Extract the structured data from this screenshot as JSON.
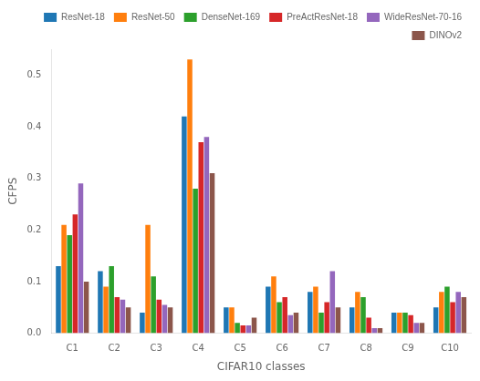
{
  "chart_data": {
    "type": "bar",
    "xlabel": "CIFAR10 classes",
    "ylabel": "CFPS",
    "categories": [
      "C1",
      "C2",
      "C3",
      "C4",
      "C5",
      "C6",
      "C7",
      "C8",
      "C9",
      "C10"
    ],
    "series": [
      {
        "name": "ResNet-18",
        "color": "#1f77b4",
        "values": [
          0.13,
          0.12,
          0.04,
          0.42,
          0.05,
          0.09,
          0.08,
          0.05,
          0.04,
          0.05
        ]
      },
      {
        "name": "ResNet-50",
        "color": "#ff7f0e",
        "values": [
          0.21,
          0.09,
          0.21,
          0.53,
          0.05,
          0.11,
          0.09,
          0.08,
          0.04,
          0.08
        ]
      },
      {
        "name": "DenseNet-169",
        "color": "#2ca02c",
        "values": [
          0.19,
          0.13,
          0.11,
          0.28,
          0.02,
          0.06,
          0.04,
          0.07,
          0.04,
          0.09
        ]
      },
      {
        "name": "PreActResNet-18",
        "color": "#d62728",
        "values": [
          0.23,
          0.07,
          0.065,
          0.37,
          0.015,
          0.07,
          0.06,
          0.03,
          0.035,
          0.06
        ]
      },
      {
        "name": "WideResNet-70-16",
        "color": "#9467bd",
        "values": [
          0.29,
          0.065,
          0.055,
          0.38,
          0.015,
          0.035,
          0.12,
          0.01,
          0.02,
          0.08
        ]
      },
      {
        "name": "DINOv2",
        "color": "#8c564b",
        "values": [
          0.1,
          0.05,
          0.05,
          0.31,
          0.03,
          0.04,
          0.05,
          0.01,
          0.02,
          0.07
        ]
      }
    ],
    "ylim": [
      0.0,
      0.55
    ],
    "yticks": [
      {
        "value": 0.0,
        "label": "0.0"
      },
      0.1,
      0.2,
      0.3,
      0.4,
      0.5
    ],
    "grid": false,
    "legend": "upper right"
  }
}
